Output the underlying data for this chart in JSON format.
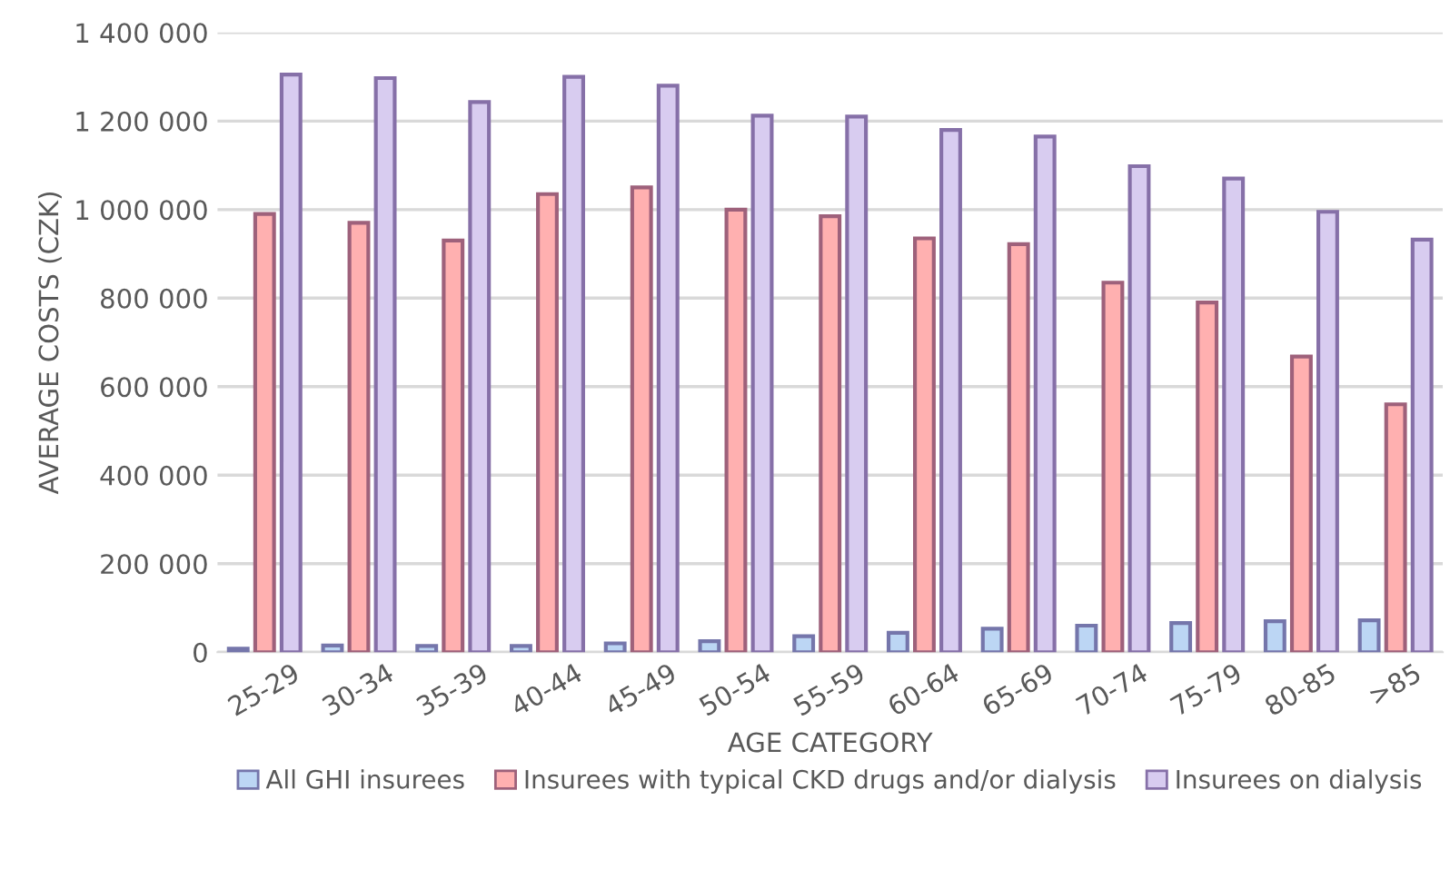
{
  "chart_data": {
    "type": "bar",
    "xlabel": "AGE CATEGORY",
    "ylabel": "AVERAGE COSTS (CZK)",
    "categories": [
      "25-29",
      "30-34",
      "35-39",
      "40-44",
      "45-49",
      "50-54",
      "55-59",
      "60-64",
      "65-69",
      "70-74",
      "75-79",
      "80-85",
      ">85"
    ],
    "series": [
      {
        "name": "All GHI insurees",
        "color": "#bcd6f4",
        "values": [
          8000,
          15000,
          14000,
          14000,
          20000,
          25000,
          36000,
          44000,
          53000,
          60000,
          66000,
          70000,
          72000
        ]
      },
      {
        "name": "Insurees with typical CKD drugs and/or dialysis",
        "color": "#ffb0b0",
        "values": [
          990000,
          970000,
          930000,
          1035000,
          1050000,
          1000000,
          985000,
          935000,
          922000,
          835000,
          790000,
          668000,
          560000
        ]
      },
      {
        "name": "Insurees on dialysis",
        "color": "#d8ccf0",
        "values": [
          1305000,
          1297000,
          1243000,
          1300000,
          1280000,
          1212000,
          1210000,
          1180000,
          1165000,
          1098000,
          1070000,
          995000,
          932000
        ]
      }
    ],
    "ylim": [
      0,
      1400000
    ],
    "yticks": [
      {
        "value": 0,
        "label": "0"
      },
      {
        "value": 200000,
        "label": "200 000"
      },
      {
        "value": 400000,
        "label": "400 000"
      },
      {
        "value": 600000,
        "label": "600 000"
      },
      {
        "value": 800000,
        "label": "800 000"
      },
      {
        "value": 1000000,
        "label": "1 000 000"
      },
      {
        "value": 1200000,
        "label": "1 200 000"
      },
      {
        "value": 1400000,
        "label": "1 400 000"
      }
    ],
    "grid": "y",
    "legend": "bottom"
  }
}
